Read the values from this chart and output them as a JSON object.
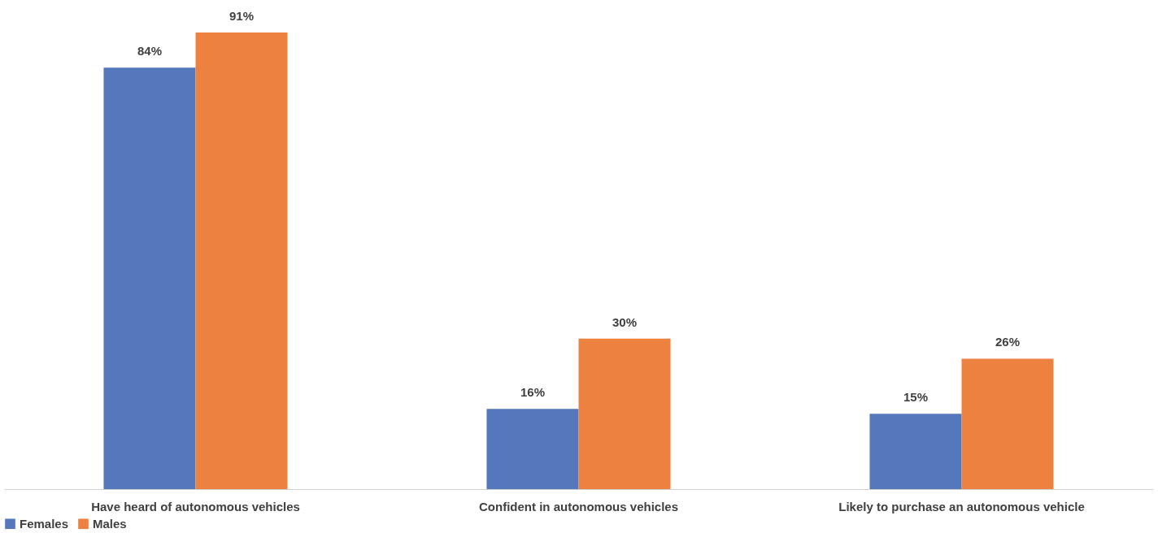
{
  "chart_data": {
    "type": "bar",
    "categories": [
      "Have heard of autonomous vehicles",
      "Confident in autonomous vehicles",
      "Likely to purchase an autonomous vehicle"
    ],
    "series": [
      {
        "name": "Females",
        "color": "#5577bb",
        "values": [
          84,
          16,
          15
        ],
        "value_labels": [
          "84%",
          "16%",
          "15%"
        ]
      },
      {
        "name": "Males",
        "color": "#ed8240",
        "values": [
          91,
          30,
          26
        ],
        "value_labels": [
          "91%",
          "30%",
          "26%"
        ]
      }
    ],
    "legend": "bottom",
    "grid": false
  }
}
